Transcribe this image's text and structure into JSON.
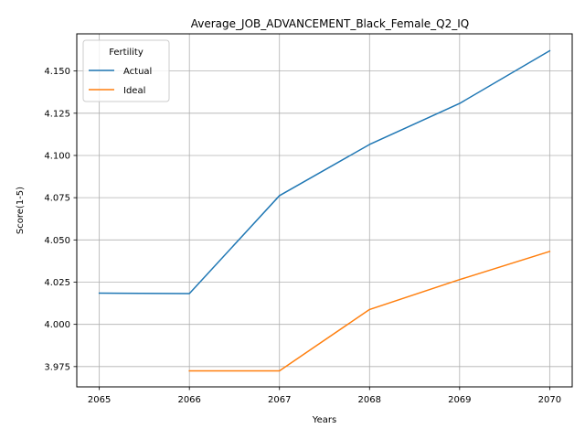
{
  "chart_data": {
    "type": "line",
    "title": "Average_JOB_ADVANCEMENT_Black_Female_Q2_IQ",
    "xlabel": "Years",
    "ylabel": "Score(1-5)",
    "x": [
      2065,
      2066,
      2067,
      2068,
      2069,
      2070
    ],
    "x_ticks": [
      "2065",
      "2066",
      "2067",
      "2068",
      "2069",
      "2070"
    ],
    "xlim": [
      2064.75,
      2070.25
    ],
    "y_ticks": [
      3.975,
      4.0,
      4.025,
      4.05,
      4.075,
      4.1,
      4.125,
      4.15
    ],
    "y_tick_labels": [
      "3.975",
      "4.000",
      "4.025",
      "4.050",
      "4.075",
      "4.100",
      "4.125",
      "4.150"
    ],
    "ylim": [
      3.963,
      4.172
    ],
    "grid": true,
    "legend": {
      "title": "Fertility",
      "placement": "top-left"
    },
    "series": [
      {
        "name": "Actual",
        "color": "#1f77b4",
        "x": [
          2065,
          2066,
          2067,
          2068,
          2069,
          2070
        ],
        "values": [
          4.0185,
          4.0182,
          4.0762,
          4.1065,
          4.1308,
          4.162
        ]
      },
      {
        "name": "Ideal",
        "color": "#ff7f0e",
        "x": [
          2066,
          2067,
          2068,
          2069,
          2070
        ],
        "values": [
          3.9725,
          3.9725,
          4.0088,
          4.0265,
          4.0432
        ]
      }
    ]
  }
}
